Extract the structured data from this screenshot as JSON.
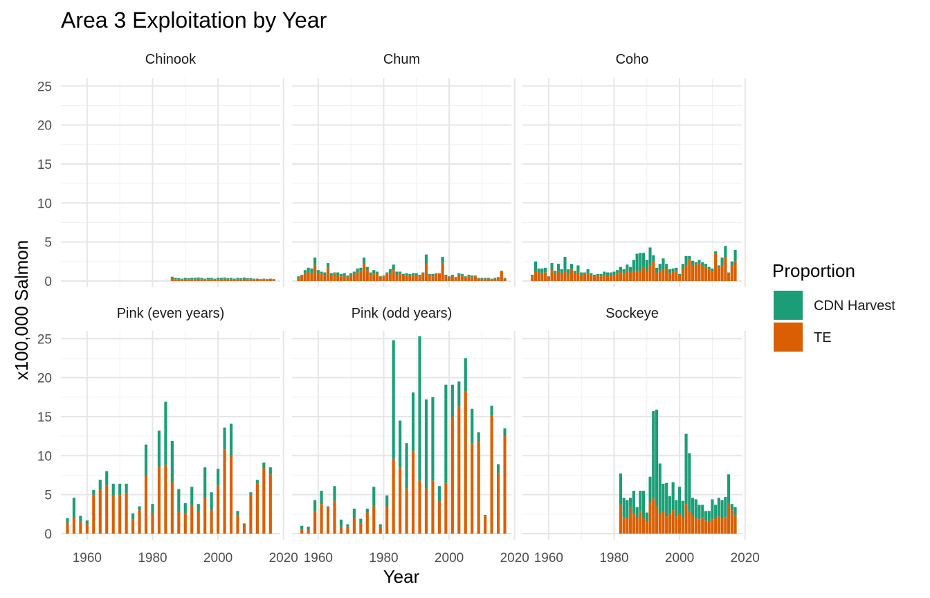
{
  "chart_data": {
    "type": "bar",
    "stacked": true,
    "title": "Area 3 Exploitation by Year",
    "xlabel": "Year",
    "ylabel": "x100,000 Salmon",
    "x_ticks": [
      1960,
      1980,
      2000,
      2020
    ],
    "y_ticks": [
      0,
      5,
      10,
      15,
      20,
      25
    ],
    "xlim": [
      1952,
      2019
    ],
    "ylim": [
      -0.8,
      26
    ],
    "legend": {
      "title": "Proportion",
      "position": "right",
      "entries": [
        {
          "name": "CDN Harvest",
          "color": "#1B9E77"
        },
        {
          "name": "TE",
          "color": "#D95F02"
        }
      ]
    },
    "panels": [
      {
        "name": "Chinook",
        "x": [
          1986,
          1987,
          1988,
          1989,
          1990,
          1991,
          1992,
          1993,
          1994,
          1995,
          1996,
          1997,
          1998,
          1999,
          2000,
          2001,
          2002,
          2003,
          2004,
          2005,
          2006,
          2007,
          2008,
          2009,
          2010,
          2011,
          2012,
          2013,
          2014,
          2015,
          2016,
          2017
        ],
        "TE": [
          0.35,
          0.25,
          0.2,
          0.2,
          0.25,
          0.2,
          0.25,
          0.25,
          0.3,
          0.25,
          0.2,
          0.25,
          0.25,
          0.2,
          0.25,
          0.25,
          0.3,
          0.25,
          0.25,
          0.2,
          0.25,
          0.25,
          0.3,
          0.25,
          0.25,
          0.2,
          0.2,
          0.15,
          0.2,
          0.15,
          0.2,
          0.15
        ],
        "CDN Harvest": [
          0.2,
          0.15,
          0.15,
          0.1,
          0.15,
          0.15,
          0.15,
          0.15,
          0.15,
          0.15,
          0.1,
          0.15,
          0.15,
          0.1,
          0.15,
          0.15,
          0.15,
          0.1,
          0.15,
          0.1,
          0.15,
          0.1,
          0.15,
          0.1,
          0.1,
          0.1,
          0.1,
          0.1,
          0.1,
          0.1,
          0.1,
          0.1
        ]
      },
      {
        "name": "Chum",
        "x": [
          1954,
          1955,
          1956,
          1957,
          1958,
          1959,
          1960,
          1961,
          1962,
          1963,
          1964,
          1965,
          1966,
          1967,
          1968,
          1969,
          1970,
          1971,
          1972,
          1973,
          1974,
          1975,
          1976,
          1977,
          1978,
          1979,
          1980,
          1981,
          1982,
          1983,
          1984,
          1985,
          1986,
          1987,
          1988,
          1989,
          1990,
          1991,
          1992,
          1993,
          1994,
          1995,
          1996,
          1997,
          1998,
          1999,
          2000,
          2001,
          2002,
          2003,
          2004,
          2005,
          2006,
          2007,
          2008,
          2009,
          2010,
          2011,
          2012,
          2013,
          2014,
          2015,
          2016,
          2017
        ],
        "TE": [
          0.3,
          0.7,
          1.0,
          1.2,
          1.0,
          2.0,
          1.0,
          0.9,
          0.8,
          1.8,
          0.7,
          0.9,
          0.8,
          0.6,
          0.7,
          0.5,
          0.8,
          1.0,
          1.1,
          1.3,
          2.2,
          1.4,
          0.8,
          0.9,
          1.0,
          0.4,
          0.6,
          0.9,
          1.0,
          1.4,
          0.8,
          1.0,
          0.7,
          0.8,
          0.7,
          0.7,
          0.8,
          0.6,
          0.9,
          2.2,
          0.8,
          0.6,
          0.9,
          0.9,
          2.3,
          0.6,
          0.5,
          0.6,
          0.4,
          0.8,
          0.8,
          0.5,
          0.6,
          0.5,
          0.6,
          0.3,
          0.3,
          0.3,
          0.3,
          0.2,
          0.3,
          0.4,
          1.2,
          0.3
        ],
        "CDN Harvest": [
          0.3,
          0.1,
          0.4,
          0.5,
          0.6,
          1.0,
          0.4,
          0.3,
          0.3,
          0.5,
          0.3,
          0.2,
          0.3,
          0.3,
          0.3,
          0.2,
          0.2,
          0.2,
          0.5,
          0.4,
          0.8,
          0.4,
          0.3,
          0.5,
          0.2,
          0.2,
          0.1,
          0.2,
          0.5,
          0.7,
          0.4,
          0.2,
          0.2,
          0.2,
          0.2,
          0.3,
          0.2,
          0.2,
          0.2,
          1.2,
          0.1,
          0.3,
          0.1,
          0.1,
          0.8,
          0.2,
          0.1,
          0.2,
          0.1,
          0.2,
          0.1,
          0.1,
          0.2,
          0.2,
          0.1,
          0.1,
          0.1,
          0.1,
          0.1,
          0.1,
          0.1,
          0.1,
          0.1,
          0.1
        ]
      },
      {
        "name": "Coho",
        "x": [
          1955,
          1956,
          1957,
          1958,
          1959,
          1960,
          1961,
          1962,
          1963,
          1964,
          1965,
          1966,
          1967,
          1968,
          1969,
          1970,
          1971,
          1972,
          1973,
          1974,
          1975,
          1976,
          1977,
          1978,
          1979,
          1980,
          1981,
          1982,
          1983,
          1984,
          1985,
          1986,
          1987,
          1988,
          1989,
          1990,
          1991,
          1992,
          1993,
          1994,
          1995,
          1996,
          1997,
          1998,
          1999,
          2000,
          2001,
          2002,
          2003,
          2004,
          2005,
          2006,
          2007,
          2008,
          2009,
          2010,
          2011,
          2012,
          2013,
          2014,
          2015,
          2016,
          2017
        ],
        "TE": [
          0.6,
          1.2,
          1.1,
          1.0,
          1.1,
          0.4,
          1.4,
          1.0,
          1.2,
          0.9,
          1.2,
          0.8,
          1.5,
          0.9,
          1.1,
          0.8,
          0.9,
          1.0,
          0.7,
          0.6,
          0.7,
          0.6,
          0.8,
          0.7,
          0.8,
          0.8,
          0.9,
          1.2,
          1.0,
          1.3,
          1.1,
          1.3,
          1.3,
          1.2,
          1.8,
          1.2,
          2.0,
          2.5,
          1.0,
          1.3,
          1.5,
          1.6,
          1.0,
          1.2,
          1.3,
          0.7,
          1.6,
          2.0,
          2.8,
          2.0,
          2.1,
          2.3,
          2.0,
          1.8,
          1.5,
          1.2,
          3.5,
          1.7,
          2.0,
          3.0,
          1.0,
          2.0,
          2.5
        ],
        "CDN Harvest": [
          0.2,
          1.3,
          0.5,
          0.6,
          0.6,
          0.2,
          0.9,
          0.3,
          1.0,
          0.6,
          1.9,
          0.7,
          0.7,
          0.4,
          0.9,
          0.3,
          0.2,
          0.5,
          0.3,
          0.2,
          0.2,
          0.3,
          0.4,
          0.4,
          0.3,
          0.4,
          0.5,
          0.6,
          0.5,
          0.8,
          0.7,
          1.4,
          2.2,
          2.4,
          1.8,
          1.5,
          2.3,
          0.8,
          0.7,
          0.9,
          1.4,
          0.6,
          0.5,
          0.4,
          0.4,
          0.2,
          0.6,
          1.2,
          0.4,
          0.6,
          0.3,
          0.4,
          0.4,
          0.4,
          0.3,
          0.4,
          0.3,
          0.3,
          1.0,
          1.5,
          0.1,
          0.5,
          1.5
        ]
      },
      {
        "name": "Pink (even years)",
        "x": [
          1954,
          1956,
          1958,
          1960,
          1962,
          1964,
          1966,
          1968,
          1970,
          1972,
          1974,
          1976,
          1978,
          1980,
          1982,
          1984,
          1986,
          1988,
          1990,
          1992,
          1994,
          1996,
          1998,
          2000,
          2002,
          2004,
          2006,
          2008,
          2010,
          2012,
          2014,
          2016
        ],
        "TE": [
          1.4,
          2.0,
          1.6,
          1.2,
          5.0,
          5.6,
          6.2,
          4.8,
          5.0,
          5.2,
          1.8,
          3.0,
          7.4,
          2.6,
          8.6,
          8.8,
          6.6,
          2.8,
          2.6,
          3.6,
          2.8,
          4.6,
          3.0,
          6.2,
          10.8,
          10.0,
          2.4,
          1.2,
          5.0,
          6.4,
          8.4,
          7.6
        ],
        "CDN Harvest": [
          0.6,
          2.6,
          0.7,
          0.5,
          0.6,
          1.3,
          1.8,
          1.6,
          1.4,
          1.2,
          0.8,
          0.5,
          4.0,
          1.2,
          4.6,
          8.1,
          5.3,
          2.9,
          1.3,
          2.4,
          1.0,
          3.9,
          2.3,
          2.1,
          2.8,
          4.1,
          0.5,
          0.1,
          0.3,
          0.5,
          0.7,
          0.9
        ]
      },
      {
        "name": "Pink (odd years)",
        "x": [
          1955,
          1957,
          1959,
          1961,
          1963,
          1965,
          1967,
          1969,
          1971,
          1973,
          1975,
          1977,
          1979,
          1981,
          1983,
          1985,
          1987,
          1989,
          1991,
          1993,
          1995,
          1997,
          1999,
          2001,
          2003,
          2005,
          2007,
          2009,
          2011,
          2013,
          2015,
          2017
        ],
        "TE": [
          0.5,
          0.5,
          2.9,
          3.8,
          3.3,
          4.2,
          0.9,
          0.9,
          2.0,
          1.3,
          2.7,
          3.5,
          0.9,
          3.5,
          9.6,
          8.5,
          5.8,
          10.5,
          6.8,
          5.8,
          6.8,
          4.2,
          6.5,
          15.0,
          16.3,
          18.2,
          11.6,
          11.8,
          2.2,
          15.1,
          7.8,
          12.5
        ],
        "CDN Harvest": [
          0.5,
          0.4,
          1.4,
          1.7,
          0.2,
          1.9,
          0.9,
          0.3,
          1.2,
          0.6,
          0.5,
          2.5,
          0.3,
          1.4,
          15.2,
          6.0,
          5.8,
          7.6,
          18.5,
          11.4,
          10.7,
          1.9,
          12.6,
          4.1,
          3.2,
          4.3,
          4.4,
          1.2,
          0.2,
          1.3,
          1.1,
          1.0
        ]
      },
      {
        "name": "Sockeye",
        "x": [
          1982,
          1983,
          1984,
          1985,
          1986,
          1987,
          1988,
          1989,
          1990,
          1991,
          1992,
          1993,
          1994,
          1995,
          1996,
          1997,
          1998,
          1999,
          2000,
          2001,
          2002,
          2003,
          2004,
          2005,
          2006,
          2007,
          2008,
          2009,
          2010,
          2011,
          2012,
          2013,
          2014,
          2015,
          2016,
          2017
        ],
        "TE": [
          3.7,
          2.1,
          2.0,
          3.4,
          2.6,
          2.0,
          2.9,
          2.0,
          1.5,
          4.0,
          4.5,
          3.5,
          2.5,
          2.8,
          2.2,
          2.5,
          3.0,
          2.2,
          2.5,
          2.0,
          3.8,
          2.8,
          2.3,
          2.0,
          1.8,
          2.1,
          1.7,
          1.5,
          1.8,
          2.0,
          2.2,
          2.0,
          2.1,
          3.9,
          3.0,
          2.4
        ],
        "CDN Harvest": [
          4.0,
          2.5,
          2.3,
          1.2,
          2.9,
          1.4,
          2.6,
          3.5,
          1.2,
          3.3,
          11.2,
          12.4,
          6.5,
          3.6,
          4.3,
          2.3,
          3.6,
          2.1,
          3.5,
          2.2,
          9.0,
          7.5,
          2.3,
          2.4,
          1.9,
          1.6,
          1.2,
          1.4,
          2.6,
          1.7,
          2.4,
          2.3,
          2.6,
          3.7,
          0.8,
          1.0
        ]
      }
    ]
  }
}
